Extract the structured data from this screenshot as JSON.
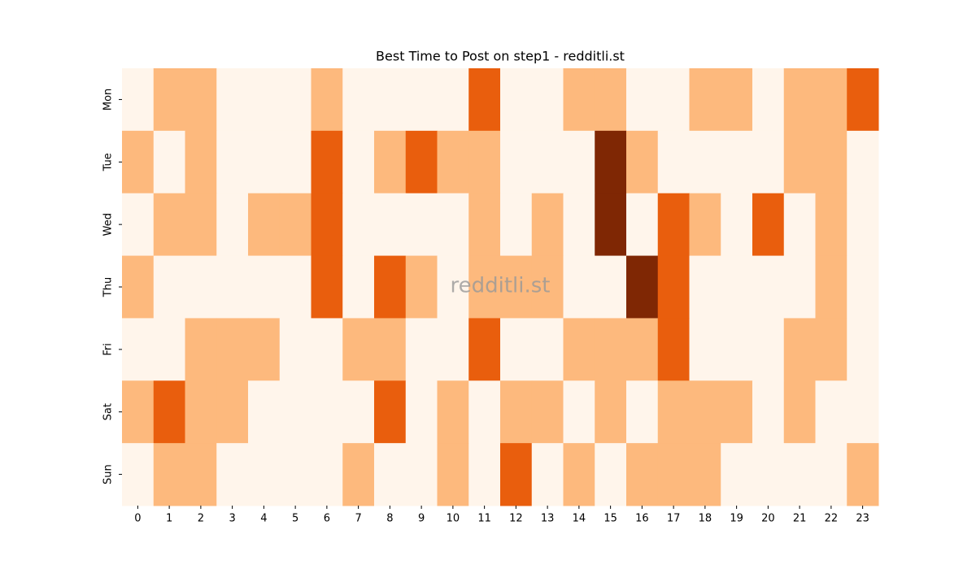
{
  "chart_data": {
    "type": "heatmap",
    "title": "Best Time to Post on step1 - redditli.st",
    "watermark": "redditli.st",
    "x": [
      0,
      1,
      2,
      3,
      4,
      5,
      6,
      7,
      8,
      9,
      10,
      11,
      12,
      13,
      14,
      15,
      16,
      17,
      18,
      19,
      20,
      21,
      22,
      23
    ],
    "y": [
      "Mon",
      "Tue",
      "Wed",
      "Thu",
      "Fri",
      "Sat",
      "Sun"
    ],
    "colors": [
      "#fff5eb",
      "#fdb97d",
      "#e95e0d",
      "#7f2704"
    ],
    "values": [
      [
        0,
        1,
        1,
        0,
        0,
        0,
        1,
        0,
        0,
        0,
        0,
        2,
        0,
        0,
        1,
        1,
        0,
        0,
        1,
        1,
        0,
        1,
        1,
        2
      ],
      [
        1,
        0,
        1,
        0,
        0,
        0,
        2,
        0,
        1,
        2,
        1,
        1,
        0,
        0,
        0,
        3,
        1,
        0,
        0,
        0,
        0,
        1,
        1,
        0
      ],
      [
        0,
        1,
        1,
        0,
        1,
        1,
        2,
        0,
        0,
        0,
        0,
        1,
        0,
        1,
        0,
        3,
        0,
        2,
        1,
        0,
        2,
        0,
        1,
        0
      ],
      [
        1,
        0,
        0,
        0,
        0,
        0,
        2,
        0,
        2,
        1,
        0,
        1,
        1,
        1,
        0,
        0,
        3,
        2,
        0,
        0,
        0,
        0,
        1,
        0
      ],
      [
        0,
        0,
        1,
        1,
        1,
        0,
        0,
        1,
        1,
        0,
        0,
        2,
        0,
        0,
        1,
        1,
        1,
        2,
        0,
        0,
        0,
        1,
        1,
        0
      ],
      [
        1,
        2,
        1,
        1,
        0,
        0,
        0,
        0,
        2,
        0,
        1,
        0,
        1,
        1,
        0,
        1,
        0,
        1,
        1,
        1,
        0,
        1,
        0,
        0
      ],
      [
        0,
        1,
        1,
        0,
        0,
        0,
        0,
        1,
        0,
        0,
        1,
        0,
        2,
        0,
        1,
        0,
        1,
        1,
        1,
        0,
        0,
        0,
        0,
        1
      ]
    ]
  }
}
